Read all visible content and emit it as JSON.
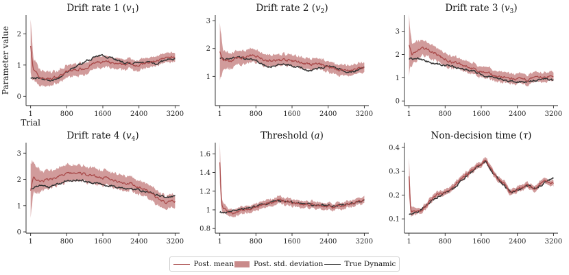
{
  "chart_data": [
    {
      "type": "line",
      "title": "Drift rate 1 (",
      "symbol": "v",
      "sub": "1",
      "title_end": ")",
      "ylabel": "Parameter value",
      "xlabel": "Trial",
      "ylim": [
        -0.3,
        2.6
      ],
      "yticks": [
        0,
        1,
        2
      ],
      "xticks": [
        1,
        800,
        1600,
        2400,
        3200
      ],
      "mean": [
        [
          1,
          1.65
        ],
        [
          60,
          0.85
        ],
        [
          200,
          0.6
        ],
        [
          400,
          0.55
        ],
        [
          600,
          0.62
        ],
        [
          800,
          0.78
        ],
        [
          1000,
          0.85
        ],
        [
          1200,
          0.9
        ],
        [
          1400,
          1.05
        ],
        [
          1600,
          1.1
        ],
        [
          1800,
          1.05
        ],
        [
          2000,
          1.0
        ],
        [
          2200,
          1.05
        ],
        [
          2400,
          1.0
        ],
        [
          2600,
          1.05
        ],
        [
          2800,
          1.15
        ],
        [
          3000,
          1.2
        ],
        [
          3200,
          1.25
        ]
      ],
      "sd": [
        [
          1,
          0.9
        ],
        [
          60,
          0.35
        ],
        [
          200,
          0.25
        ],
        [
          600,
          0.2
        ],
        [
          1600,
          0.18
        ],
        [
          3200,
          0.15
        ]
      ],
      "truth": [
        [
          1,
          0.55
        ],
        [
          200,
          0.6
        ],
        [
          400,
          0.5
        ],
        [
          600,
          0.55
        ],
        [
          800,
          0.75
        ],
        [
          1000,
          0.95
        ],
        [
          1200,
          1.1
        ],
        [
          1400,
          1.25
        ],
        [
          1600,
          1.3
        ],
        [
          1800,
          1.25
        ],
        [
          2000,
          1.1
        ],
        [
          2200,
          1.05
        ],
        [
          2400,
          1.05
        ],
        [
          2600,
          1.1
        ],
        [
          2800,
          1.05
        ],
        [
          3000,
          1.15
        ],
        [
          3200,
          1.2
        ]
      ]
    },
    {
      "type": "line",
      "title": "Drift rate 2 (",
      "symbol": "v",
      "sub": "2",
      "title_end": ")",
      "ylabel": "",
      "xlabel": "",
      "ylim": [
        -0.05,
        3.2
      ],
      "yticks": [
        1,
        2,
        3
      ],
      "xticks": [
        1,
        800,
        1600,
        2400,
        3200
      ],
      "mean": [
        [
          1,
          1.9
        ],
        [
          60,
          1.6
        ],
        [
          200,
          1.55
        ],
        [
          400,
          1.65
        ],
        [
          600,
          1.7
        ],
        [
          800,
          1.75
        ],
        [
          1000,
          1.6
        ],
        [
          1200,
          1.55
        ],
        [
          1400,
          1.6
        ],
        [
          1600,
          1.55
        ],
        [
          1800,
          1.5
        ],
        [
          2000,
          1.4
        ],
        [
          2200,
          1.45
        ],
        [
          2400,
          1.35
        ],
        [
          2600,
          1.25
        ],
        [
          2800,
          1.2
        ],
        [
          3000,
          1.25
        ],
        [
          3200,
          1.3
        ]
      ],
      "sd": [
        [
          1,
          1.0
        ],
        [
          60,
          0.4
        ],
        [
          200,
          0.28
        ],
        [
          800,
          0.22
        ],
        [
          3200,
          0.18
        ]
      ],
      "truth": [
        [
          1,
          1.65
        ],
        [
          200,
          1.6
        ],
        [
          400,
          1.7
        ],
        [
          600,
          1.65
        ],
        [
          800,
          1.55
        ],
        [
          1000,
          1.4
        ],
        [
          1200,
          1.35
        ],
        [
          1400,
          1.45
        ],
        [
          1600,
          1.4
        ],
        [
          1800,
          1.3
        ],
        [
          2000,
          1.2
        ],
        [
          2200,
          1.3
        ],
        [
          2400,
          1.35
        ],
        [
          2600,
          1.3
        ],
        [
          2800,
          1.15
        ],
        [
          3000,
          1.2
        ],
        [
          3200,
          1.3
        ]
      ]
    },
    {
      "type": "line",
      "title": "Drift rate 3 (",
      "symbol": "v",
      "sub": "3",
      "title_end": ")",
      "ylabel": "",
      "xlabel": "",
      "ylim": [
        -0.2,
        3.7
      ],
      "yticks": [
        0,
        1,
        2,
        3
      ],
      "xticks": [
        1,
        800,
        1600,
        2400,
        3200
      ],
      "mean": [
        [
          1,
          2.4
        ],
        [
          60,
          2.0
        ],
        [
          150,
          2.1
        ],
        [
          300,
          2.25
        ],
        [
          500,
          2.15
        ],
        [
          700,
          1.9
        ],
        [
          900,
          1.7
        ],
        [
          1100,
          1.6
        ],
        [
          1300,
          1.5
        ],
        [
          1500,
          1.3
        ],
        [
          1700,
          1.2
        ],
        [
          1900,
          1.1
        ],
        [
          2100,
          1.0
        ],
        [
          2300,
          0.95
        ],
        [
          2500,
          0.9
        ],
        [
          2700,
          0.95
        ],
        [
          2900,
          1.0
        ],
        [
          3100,
          1.05
        ],
        [
          3200,
          1.05
        ]
      ],
      "sd": [
        [
          1,
          1.2
        ],
        [
          60,
          0.5
        ],
        [
          300,
          0.32
        ],
        [
          1000,
          0.25
        ],
        [
          3200,
          0.2
        ]
      ],
      "truth": [
        [
          1,
          1.8
        ],
        [
          200,
          1.85
        ],
        [
          400,
          1.7
        ],
        [
          600,
          1.6
        ],
        [
          800,
          1.55
        ],
        [
          1000,
          1.45
        ],
        [
          1200,
          1.4
        ],
        [
          1400,
          1.3
        ],
        [
          1600,
          1.15
        ],
        [
          1800,
          1.05
        ],
        [
          2000,
          0.95
        ],
        [
          2200,
          0.85
        ],
        [
          2400,
          0.8
        ],
        [
          2600,
          0.85
        ],
        [
          2800,
          0.9
        ],
        [
          3000,
          0.95
        ],
        [
          3200,
          0.9
        ]
      ]
    },
    {
      "type": "line",
      "title": "Drift rate 4 (",
      "symbol": "v",
      "sub": "4",
      "title_end": ")",
      "ylabel": "",
      "xlabel": "",
      "ylim": [
        -0.05,
        3.4
      ],
      "yticks": [
        0,
        1,
        2,
        3
      ],
      "xticks": [
        1,
        800,
        1600,
        2400,
        3200
      ],
      "mean": [
        [
          1,
          1.6
        ],
        [
          60,
          2.1
        ],
        [
          200,
          1.9
        ],
        [
          400,
          2.0
        ],
        [
          600,
          2.1
        ],
        [
          800,
          2.2
        ],
        [
          1000,
          2.25
        ],
        [
          1200,
          2.2
        ],
        [
          1400,
          2.15
        ],
        [
          1600,
          2.05
        ],
        [
          1800,
          2.0
        ],
        [
          2000,
          1.9
        ],
        [
          2200,
          1.85
        ],
        [
          2400,
          1.7
        ],
        [
          2600,
          1.55
        ],
        [
          2800,
          1.3
        ],
        [
          3000,
          1.1
        ],
        [
          3200,
          1.15
        ]
      ],
      "sd": [
        [
          1,
          1.1
        ],
        [
          60,
          0.55
        ],
        [
          300,
          0.35
        ],
        [
          1200,
          0.3
        ],
        [
          3200,
          0.25
        ]
      ],
      "truth": [
        [
          1,
          1.65
        ],
        [
          200,
          1.75
        ],
        [
          400,
          1.7
        ],
        [
          600,
          1.8
        ],
        [
          800,
          1.95
        ],
        [
          1000,
          2.0
        ],
        [
          1200,
          1.95
        ],
        [
          1400,
          1.85
        ],
        [
          1600,
          1.8
        ],
        [
          1800,
          1.75
        ],
        [
          2000,
          1.7
        ],
        [
          2200,
          1.65
        ],
        [
          2400,
          1.6
        ],
        [
          2600,
          1.5
        ],
        [
          2800,
          1.4
        ],
        [
          3000,
          1.3
        ],
        [
          3200,
          1.35
        ]
      ]
    },
    {
      "type": "line",
      "title": "Threshold (",
      "symbol": "a",
      "sub": "",
      "title_end": ")",
      "ylabel": "",
      "xlabel": "",
      "ylim": [
        0.75,
        1.72
      ],
      "yticks": [
        0.8,
        1.0,
        1.2,
        1.4,
        1.6
      ],
      "xticks": [
        1,
        800,
        1600,
        2400,
        3200
      ],
      "mean": [
        [
          1,
          1.5
        ],
        [
          40,
          1.05
        ],
        [
          150,
          0.98
        ],
        [
          300,
          0.97
        ],
        [
          500,
          1.0
        ],
        [
          700,
          1.02
        ],
        [
          900,
          1.05
        ],
        [
          1100,
          1.07
        ],
        [
          1300,
          1.1
        ],
        [
          1500,
          1.09
        ],
        [
          1700,
          1.07
        ],
        [
          1900,
          1.05
        ],
        [
          2100,
          1.06
        ],
        [
          2300,
          1.04
        ],
        [
          2500,
          1.03
        ],
        [
          2700,
          1.05
        ],
        [
          2900,
          1.07
        ],
        [
          3100,
          1.09
        ],
        [
          3200,
          1.11
        ]
      ],
      "sd": [
        [
          1,
          0.2
        ],
        [
          40,
          0.06
        ],
        [
          200,
          0.04
        ],
        [
          3200,
          0.035
        ]
      ],
      "truth": [
        [
          1,
          0.97
        ],
        [
          200,
          0.98
        ],
        [
          400,
          1.0
        ],
        [
          600,
          1.02
        ],
        [
          800,
          1.04
        ],
        [
          1000,
          1.06
        ],
        [
          1200,
          1.09
        ],
        [
          1400,
          1.1
        ],
        [
          1600,
          1.08
        ],
        [
          1800,
          1.07
        ],
        [
          2000,
          1.06
        ],
        [
          2200,
          1.05
        ],
        [
          2400,
          1.05
        ],
        [
          2600,
          1.04
        ],
        [
          2800,
          1.06
        ],
        [
          3000,
          1.08
        ],
        [
          3200,
          1.1
        ]
      ]
    },
    {
      "type": "line",
      "title": "Non-decision time (",
      "symbol": "τ",
      "sub": "",
      "title_end": ")",
      "ylabel": "",
      "xlabel": "",
      "ylim": [
        0.04,
        0.42
      ],
      "yticks": [
        0.1,
        0.2,
        0.3,
        0.4
      ],
      "xticks": [
        1,
        800,
        1600,
        2400,
        3200
      ],
      "mean": [
        [
          1,
          0.28
        ],
        [
          40,
          0.13
        ],
        [
          200,
          0.13
        ],
        [
          400,
          0.16
        ],
        [
          600,
          0.2
        ],
        [
          800,
          0.21
        ],
        [
          1000,
          0.24
        ],
        [
          1200,
          0.28
        ],
        [
          1400,
          0.3
        ],
        [
          1600,
          0.33
        ],
        [
          1700,
          0.35
        ],
        [
          1800,
          0.31
        ],
        [
          1950,
          0.27
        ],
        [
          2100,
          0.25
        ],
        [
          2250,
          0.21
        ],
        [
          2400,
          0.22
        ],
        [
          2600,
          0.24
        ],
        [
          2800,
          0.23
        ],
        [
          3000,
          0.26
        ],
        [
          3200,
          0.25
        ]
      ],
      "sd": [
        [
          1,
          0.08
        ],
        [
          40,
          0.02
        ],
        [
          200,
          0.012
        ],
        [
          3200,
          0.012
        ]
      ],
      "truth": [
        [
          1,
          0.12
        ],
        [
          200,
          0.13
        ],
        [
          400,
          0.16
        ],
        [
          600,
          0.19
        ],
        [
          800,
          0.21
        ],
        [
          1000,
          0.23
        ],
        [
          1200,
          0.27
        ],
        [
          1400,
          0.3
        ],
        [
          1600,
          0.33
        ],
        [
          1700,
          0.34
        ],
        [
          1800,
          0.31
        ],
        [
          1950,
          0.27
        ],
        [
          2100,
          0.24
        ],
        [
          2250,
          0.21
        ],
        [
          2400,
          0.22
        ],
        [
          2600,
          0.24
        ],
        [
          2800,
          0.23
        ],
        [
          3000,
          0.25
        ],
        [
          3200,
          0.27
        ]
      ]
    }
  ],
  "legend": {
    "mean_label": "Post. mean",
    "sd_label": "Post. std. deviation",
    "truth_label": "True Dynamic"
  },
  "colors": {
    "mean": "#a94a4a",
    "band": "#c98a8a",
    "truth": "#333333"
  }
}
